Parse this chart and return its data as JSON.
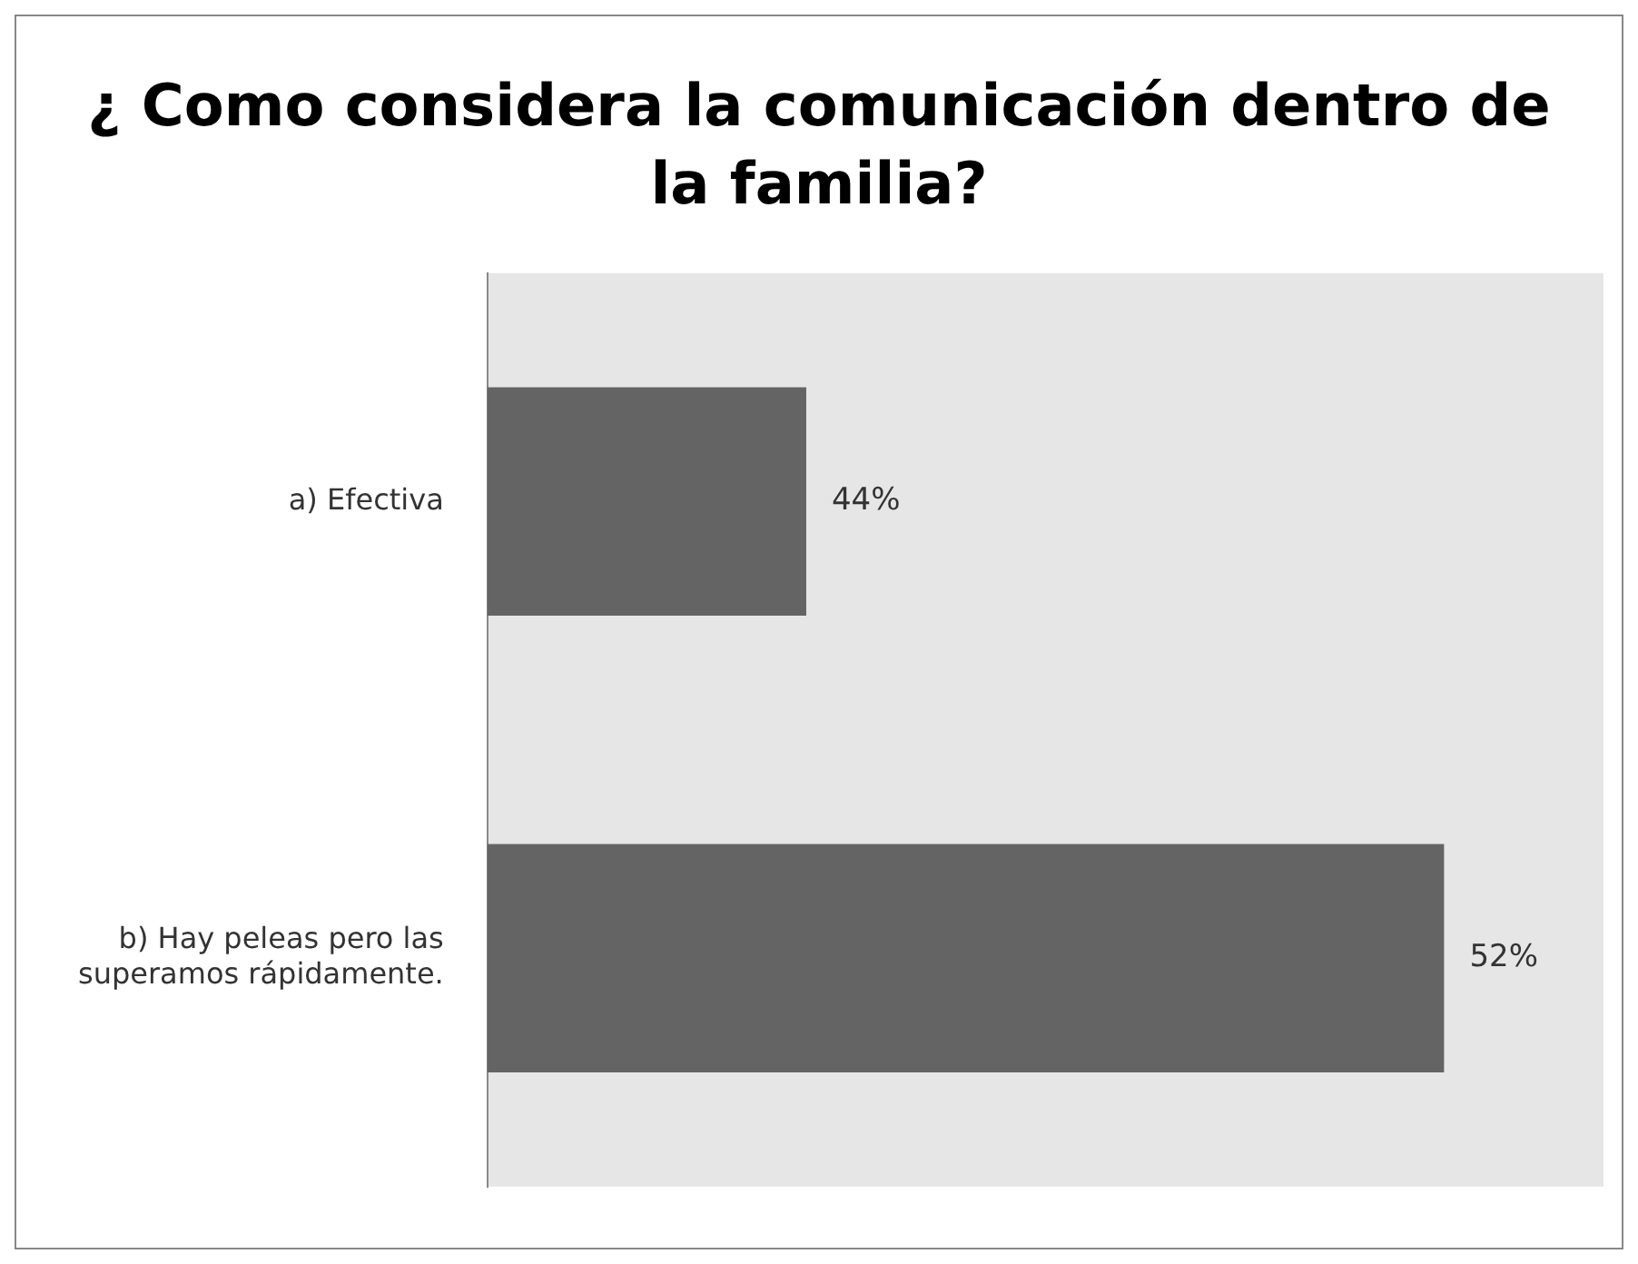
{
  "chart_data": {
    "type": "bar",
    "orientation": "horizontal",
    "title": "¿ Como considera la comunicación dentro de la familia?",
    "categories": [
      "a) Efectiva",
      "b) Hay peleas pero las superamos rápidamente."
    ],
    "values": [
      44,
      52
    ],
    "value_labels": [
      "44%",
      "52%"
    ],
    "color": "#646464",
    "xlim": [
      40,
      54
    ],
    "tick_labels": "y",
    "grid": false,
    "legend": false
  }
}
